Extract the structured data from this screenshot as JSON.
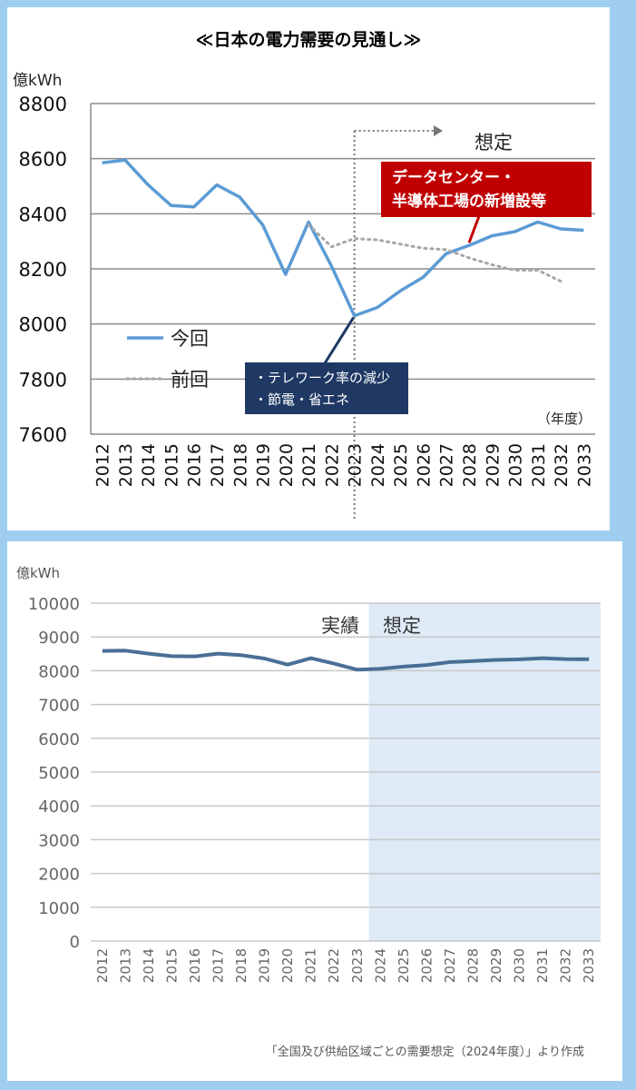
{
  "chart_data": [
    {
      "type": "line",
      "title": "≪日本の電力需要の見通し≫",
      "ylabel": "億kWh",
      "xlabel": "（年度）",
      "ylim": [
        7600,
        8800
      ],
      "yticks": [
        7600,
        7800,
        8000,
        8200,
        8400,
        8600,
        8800
      ],
      "categories": [
        "2012",
        "2013",
        "2014",
        "2015",
        "2016",
        "2017",
        "2018",
        "2019",
        "2020",
        "2021",
        "2022",
        "2023",
        "2024",
        "2025",
        "2026",
        "2027",
        "2028",
        "2029",
        "2030",
        "2031",
        "2032",
        "2033"
      ],
      "forecast_label": "想定",
      "forecast_start": "2023",
      "grid": true,
      "legend_position": "left-lower",
      "series": [
        {
          "name": "今回",
          "color": "#5b9bd5",
          "style": "solid",
          "values": [
            8585,
            8595,
            8505,
            8430,
            8425,
            8505,
            8460,
            8360,
            8180,
            8370,
            8210,
            8030,
            8060,
            8120,
            8170,
            8255,
            8285,
            8320,
            8335,
            8370,
            8345,
            8340
          ]
        },
        {
          "name": "前回",
          "color": "#a6a6a6",
          "style": "dotted",
          "values": [
            null,
            null,
            null,
            null,
            null,
            null,
            null,
            null,
            null,
            8360,
            8280,
            8310,
            8305,
            8290,
            8275,
            8270,
            8240,
            8215,
            8195,
            8195,
            8155,
            null
          ]
        }
      ],
      "annotations": [
        {
          "lines": [
            "データセンター・",
            "半導体工場の新増設等"
          ],
          "color": "#c00000",
          "target": "2028"
        },
        {
          "lines": [
            "・テレワーク率の減少",
            "・節電・省エネ"
          ],
          "color": "#1f3864",
          "target": "2023"
        }
      ]
    },
    {
      "type": "line",
      "ylabel": "億kWh",
      "ylim": [
        0,
        10000
      ],
      "yticks": [
        0,
        1000,
        2000,
        3000,
        4000,
        5000,
        6000,
        7000,
        8000,
        9000,
        10000
      ],
      "categories": [
        "2012",
        "2013",
        "2014",
        "2015",
        "2016",
        "2017",
        "2018",
        "2019",
        "2020",
        "2021",
        "2022",
        "2023",
        "2024",
        "2025",
        "2026",
        "2027",
        "2028",
        "2029",
        "2030",
        "2031",
        "2032",
        "2033"
      ],
      "region_labels": {
        "actual": "実績",
        "forecast": "想定"
      },
      "forecast_start": "2023",
      "shade_color": "#deebf7",
      "line_color": "#4a6f96",
      "grid": true,
      "values": [
        8585,
        8595,
        8505,
        8430,
        8425,
        8505,
        8460,
        8360,
        8180,
        8370,
        8210,
        8030,
        8060,
        8120,
        8170,
        8255,
        8285,
        8320,
        8335,
        8370,
        8345,
        8340
      ],
      "source": "「全国及び供給区域ごとの需要想定（2024年度）」より作成"
    }
  ]
}
